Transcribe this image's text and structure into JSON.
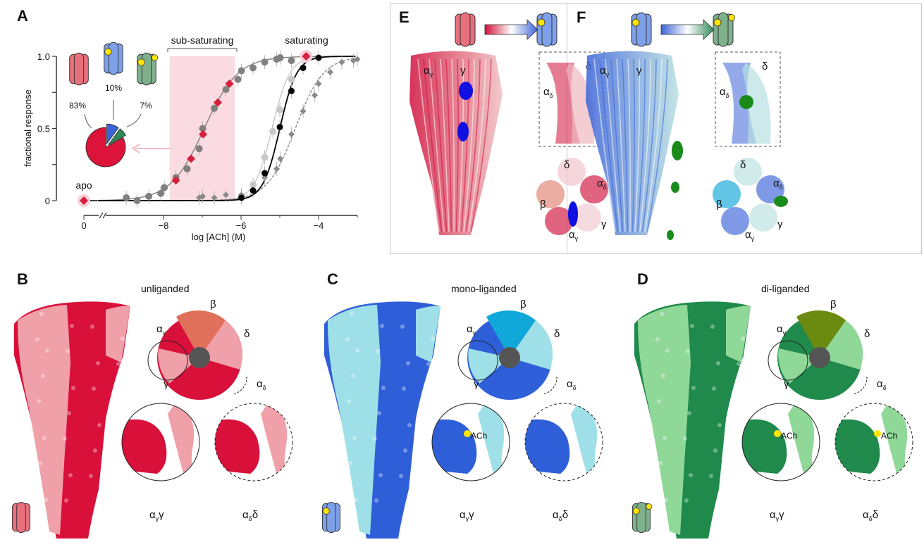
{
  "panels": {
    "A": {
      "letter": "A"
    },
    "E": {
      "letter": "E",
      "arrow_colors": [
        "#d0103a",
        "#ffffff",
        "#3b63d8"
      ],
      "labels": {
        "ag": [
          "α",
          "γ"
        ],
        "g": [
          "γ",
          ""
        ],
        "ad": [
          "α",
          "δ"
        ],
        "d": [
          "δ",
          ""
        ],
        "b": [
          "β",
          ""
        ],
        "top_d": [
          "δ",
          ""
        ],
        "top_ad": [
          "α",
          "δ"
        ],
        "top_g": [
          "γ",
          ""
        ],
        "top_ag": [
          "α",
          "γ"
        ]
      }
    },
    "F": {
      "letter": "F",
      "arrow_colors": [
        "#3b63d8",
        "#ffffff",
        "#2e8b57"
      ],
      "labels": {
        "ag": [
          "α",
          "γ"
        ],
        "g": [
          "γ",
          ""
        ],
        "ad": [
          "α",
          "δ"
        ],
        "d": [
          "δ",
          ""
        ],
        "b": [
          "β",
          ""
        ],
        "top_d": [
          "δ",
          ""
        ],
        "top_ad": [
          "α",
          "δ"
        ],
        "top_g": [
          "γ",
          ""
        ],
        "top_ag": [
          "α",
          "γ"
        ]
      }
    }
  },
  "maps": [
    {
      "letter": "B",
      "title": "unliganded",
      "colors": [
        "#d8103a",
        "#f0a0a8",
        "#e0705a"
      ],
      "ach": false,
      "ach_label": "",
      "state_icon": "unliganded-channel-icon",
      "icon_color": "#e8707c",
      "labels": {
        "b": [
          "β",
          ""
        ],
        "ag": [
          "α",
          "γ"
        ],
        "d": [
          "δ",
          ""
        ],
        "g": [
          "γ",
          ""
        ],
        "ad": [
          "α",
          "δ"
        ]
      },
      "inset1": [
        "α",
        "γ",
        "γ"
      ],
      "inset2": [
        "α",
        "δ",
        "δ"
      ]
    },
    {
      "letter": "C",
      "title": "mono-liganded",
      "colors": [
        "#2f5fd8",
        "#9fe0e8",
        "#10a8d8"
      ],
      "ach": true,
      "ach_label": "ACh",
      "ach_both": false,
      "state_icon": "mono-liganded-channel-icon",
      "icon_color": "#7da0e8",
      "labels": {
        "b": [
          "β",
          ""
        ],
        "ag": [
          "α",
          "γ"
        ],
        "d": [
          "δ",
          ""
        ],
        "g": [
          "γ",
          ""
        ],
        "ad": [
          "α",
          "δ"
        ]
      },
      "inset1": [
        "α",
        "γ",
        "γ"
      ],
      "inset2": [
        "α",
        "δ",
        "δ"
      ]
    },
    {
      "letter": "D",
      "title": "di-liganded",
      "colors": [
        "#1f8a4c",
        "#90d898",
        "#6a8a10"
      ],
      "ach": true,
      "ach_label": "ACh",
      "ach_both": true,
      "state_icon": "di-liganded-channel-icon",
      "icon_color": "#7fb08c",
      "labels": {
        "b": [
          "β",
          ""
        ],
        "ag": [
          "α",
          "γ"
        ],
        "d": [
          "δ",
          ""
        ],
        "g": [
          "γ",
          ""
        ],
        "ad": [
          "α",
          "δ"
        ]
      },
      "inset1": [
        "α",
        "γ",
        "γ"
      ],
      "inset2": [
        "α",
        "δ",
        "δ"
      ]
    }
  ],
  "chart_data": {
    "type": "scatter",
    "xlabel": "log [ACh] (M)",
    "ylabel": "fractional response",
    "xlim": [
      -9.7,
      -3
    ],
    "ylim": [
      0,
      1
    ],
    "x_ticks": [
      "0",
      "-8",
      "-6",
      "-4"
    ],
    "y_ticks": [
      "0",
      "0.5",
      "1.0"
    ],
    "axis_break": true,
    "grid": false,
    "annotations": {
      "sub_saturating": "sub-saturating",
      "saturating": "saturating",
      "apo": "apo"
    },
    "shaded_range": [
      -7.84,
      -6.16
    ],
    "shade_color": "#fadbe2",
    "series": [
      {
        "marker": "circle",
        "color": "#808080",
        "fit": {
          "ec50": -6.95,
          "hill": 1.0,
          "style": "solid"
        },
        "x": [
          -8.96,
          -8.68,
          -8.38,
          -8.07,
          -7.98,
          -7.68,
          -7.39,
          -7.08,
          -6.99,
          -6.69,
          -6.39,
          -6.08,
          -5.99,
          -5.69,
          -5.39,
          -5.08,
          -4.99,
          -4.7
        ],
        "y": [
          0.02,
          0,
          0.03,
          0.05,
          0.09,
          0.16,
          0.22,
          0.36,
          0.5,
          0.64,
          0.77,
          0.84,
          0.9,
          0.92,
          0.96,
          0.98,
          0.99,
          0.97
        ]
      },
      {
        "marker": "circle",
        "color": "#c8c8c8",
        "fit": {
          "ec50": -5.2,
          "hill": 1.9,
          "style": "solid"
        },
        "x": [
          -5.99,
          -5.69,
          -5.39,
          -5.18,
          -5.0,
          -4.7
        ],
        "y": [
          0.03,
          0.11,
          0.3,
          0.48,
          0.63,
          0.84
        ]
      },
      {
        "marker": "diamond",
        "color": "#8a8a8a",
        "fit": {
          "ec50": -4.6,
          "hill": 1.2,
          "style": "dashed"
        },
        "x": [
          -7.08,
          -6.99,
          -6.69,
          -6.39,
          -5.99,
          -5.39,
          -5.08,
          -4.99,
          -4.7,
          -4.4,
          -4.1,
          -4.0,
          -3.7,
          -3.4,
          -3.1,
          -3.0
        ],
        "y": [
          0.02,
          0.03,
          0.02,
          0.04,
          0.04,
          0.16,
          0.22,
          0.29,
          0.46,
          0.62,
          0.73,
          0.81,
          0.89,
          0.96,
          0.97,
          0.98
        ]
      },
      {
        "marker": "circle",
        "color": "#000000",
        "fit": {
          "ec50": -5.0,
          "hill": 2.0,
          "style": "solid"
        },
        "x": [
          -5.99,
          -5.69,
          -5.39,
          -5.0,
          -4.7,
          -4.4,
          -4.0
        ],
        "y": [
          0.02,
          0.07,
          0.19,
          0.51,
          0.76,
          0.92,
          0.99
        ]
      },
      {
        "marker": "diamond",
        "color": "#d81e3c",
        "fit": null,
        "x": [
          -7.68,
          -7.29,
          -6.98,
          -6.6,
          -6.3,
          -4.32
        ],
        "y": [
          0.14,
          0.29,
          0.46,
          0.68,
          0.81,
          1.0
        ]
      }
    ],
    "apo_point": {
      "x_label": "0",
      "y": 0,
      "color": "#d81e3c"
    },
    "pie": {
      "slices": [
        {
          "label": "83%",
          "value": 83,
          "color": "#dc143c",
          "icon_color": "#e8707c",
          "ligands": 0
        },
        {
          "label": "10%",
          "value": 10,
          "color": "#3b63d8",
          "icon_color": "#7da0e8",
          "ligands": 1
        },
        {
          "label": "7%",
          "value": 7,
          "color": "#2e8b57",
          "icon_color": "#7fb08c",
          "ligands": 2
        }
      ]
    }
  }
}
